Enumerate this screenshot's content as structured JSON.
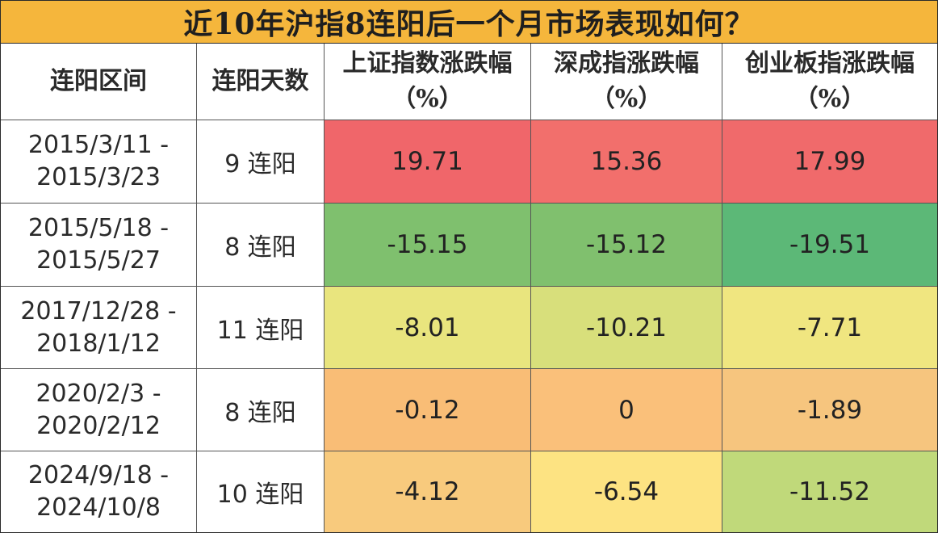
{
  "title": "近10年沪指8连阳后一个月市场表现如何？",
  "columns": {
    "range": "连阳区间",
    "days": "连阳天数",
    "sh_line1": "上证指数涨跌幅",
    "sh_line2": "（%）",
    "sz_line1": "深成指涨跌幅",
    "sz_line2": "（%）",
    "cy_line1": "创业板指涨跌幅",
    "cy_line2": "（%）"
  },
  "colors": {
    "title_bg": "#f5b63c",
    "r0": [
      "#f0666a",
      "#f26f6c",
      "#f06a6b"
    ],
    "r1": [
      "#7fc06e",
      "#80c06e",
      "#5cb877"
    ],
    "r2": [
      "#e9e57e",
      "#d8df7b",
      "#f0e680"
    ],
    "r3": [
      "#f9bd76",
      "#fac07a",
      "#f6c57e"
    ],
    "r4": [
      "#f8ca7d",
      "#fde382",
      "#c0d97a"
    ]
  },
  "rows": [
    {
      "start": "2015/3/11 -",
      "end": "2015/3/23",
      "days": "9 连阳",
      "sh": "19.71",
      "sz": "15.36",
      "cy": "17.99"
    },
    {
      "start": "2015/5/18 -",
      "end": "2015/5/27",
      "days": "8 连阳",
      "sh": "-15.15",
      "sz": "-15.12",
      "cy": "-19.51"
    },
    {
      "start": "2017/12/28 -",
      "end": "2018/1/12",
      "days": "11 连阳",
      "sh": "-8.01",
      "sz": "-10.21",
      "cy": "-7.71"
    },
    {
      "start": "2020/2/3 -",
      "end": "2020/2/12",
      "days": "8 连阳",
      "sh": "-0.12",
      "sz": "0",
      "cy": "-1.89"
    },
    {
      "start": "2024/9/18 -",
      "end": "2024/10/8",
      "days": "10 连阳",
      "sh": "-4.12",
      "sz": "-6.54",
      "cy": "-11.52"
    }
  ],
  "chart_data": {
    "type": "table",
    "title": "近10年沪指8连阳后一个月市场表现如何？",
    "columns": [
      "连阳区间",
      "连阳天数",
      "上证指数涨跌幅（%）",
      "深成指涨跌幅（%）",
      "创业板指涨跌幅（%）"
    ],
    "rows": [
      [
        "2015/3/11 - 2015/3/23",
        "9 连阳",
        19.71,
        15.36,
        17.99
      ],
      [
        "2015/5/18 - 2015/5/27",
        "8 连阳",
        -15.15,
        -15.12,
        -19.51
      ],
      [
        "2017/12/28 - 2018/1/12",
        "11 连阳",
        -8.01,
        -10.21,
        -7.71
      ],
      [
        "2020/2/3 - 2020/2/12",
        "8 连阳",
        -0.12,
        0,
        -1.89
      ],
      [
        "2024/9/18 - 2024/10/8",
        "10 连阳",
        -4.12,
        -6.54,
        -11.52
      ]
    ]
  }
}
